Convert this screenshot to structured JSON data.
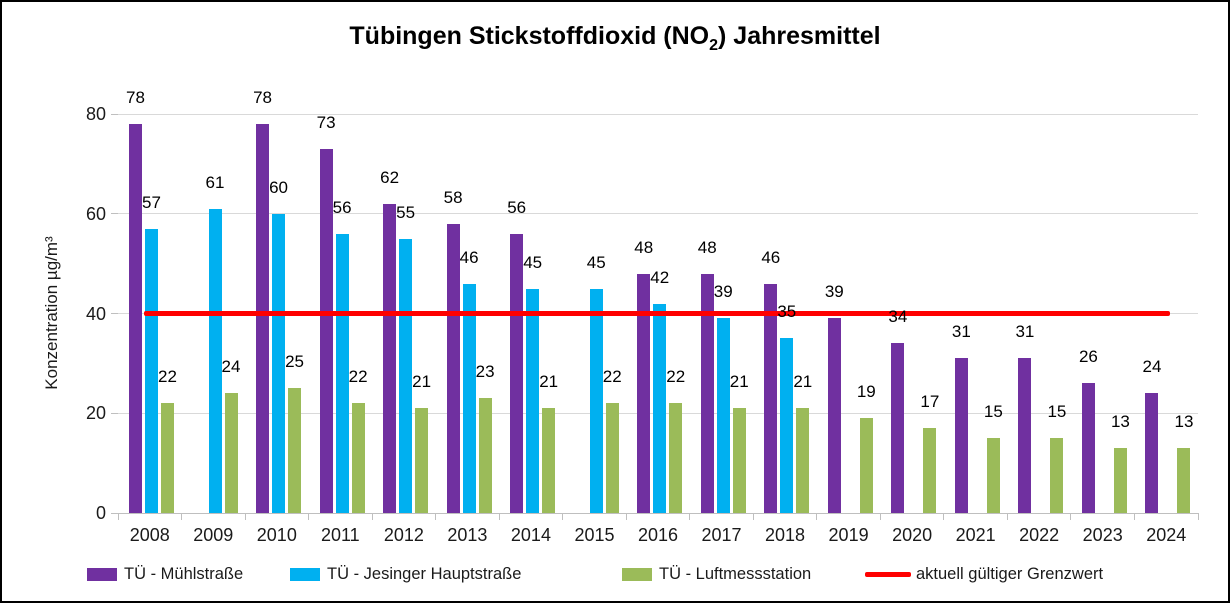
{
  "chart_data": {
    "type": "bar",
    "title": "Tübingen Stickstoffdioxid (NO2) Jahresmittel",
    "title_parts": {
      "prefix": "Tübingen Stickstoffdioxid (NO",
      "sub": "2",
      "suffix": ") Jahresmittel"
    },
    "xlabel": "",
    "ylabel": "Konzentration µg/m³",
    "ylim": [
      0,
      80
    ],
    "yticks": [
      0,
      20,
      40,
      60,
      80
    ],
    "grid": true,
    "legend_position": "bottom",
    "categories": [
      "2008",
      "2009",
      "2010",
      "2011",
      "2012",
      "2013",
      "2014",
      "2015",
      "2016",
      "2017",
      "2018",
      "2019",
      "2020",
      "2021",
      "2022",
      "2023",
      "2024"
    ],
    "series": [
      {
        "name": "TÜ - Mühlstraße",
        "color": "#7030A0",
        "values": [
          78,
          null,
          78,
          73,
          62,
          58,
          56,
          null,
          48,
          48,
          46,
          39,
          34,
          31,
          31,
          26,
          24
        ]
      },
      {
        "name": "TÜ - Jesinger Hauptstraße",
        "color": "#00B0F0",
        "values": [
          57,
          61,
          60,
          56,
          55,
          46,
          45,
          45,
          42,
          39,
          35,
          null,
          null,
          null,
          null,
          null,
          null
        ]
      },
      {
        "name": "TÜ - Luftmessstation",
        "color": "#9BBB59",
        "values": [
          22,
          24,
          25,
          22,
          21,
          23,
          21,
          22,
          22,
          21,
          21,
          19,
          17,
          15,
          15,
          13,
          13
        ]
      }
    ],
    "reference_line": {
      "value": 40,
      "label": "aktuell gültiger Grenzwert",
      "color": "#FF0000"
    },
    "colors": {
      "gridline": "#D9D9D9",
      "axis": "#BFBFBF",
      "text": "#1A1A1A"
    }
  }
}
